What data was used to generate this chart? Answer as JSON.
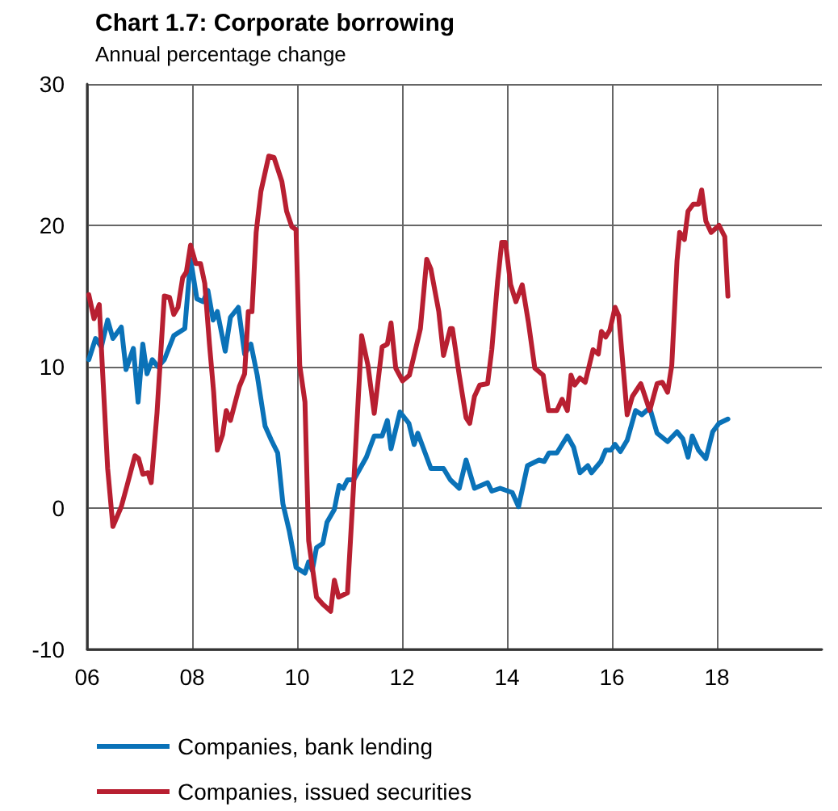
{
  "chart_data": {
    "type": "line",
    "title": "Chart 1.7: Corporate borrowing",
    "subtitle": "Annual percentage change",
    "xlim": [
      2006,
      2020
    ],
    "xticks": [
      {
        "value": 2006,
        "label": "06"
      },
      {
        "value": 2008,
        "label": "08"
      },
      {
        "value": 2010,
        "label": "10"
      },
      {
        "value": 2012,
        "label": "12"
      },
      {
        "value": 2014,
        "label": "14"
      },
      {
        "value": 2016,
        "label": "16"
      },
      {
        "value": 2018,
        "label": "18"
      }
    ],
    "ylim": [
      -10,
      30
    ],
    "yticks": [
      -10,
      0,
      10,
      20,
      30
    ],
    "grid": true,
    "legend": "bottom",
    "marker": "none",
    "line_style": "solid",
    "series": [
      {
        "name": "Companies, bank lending",
        "color": "#0a72b8",
        "x": [
          2006.03,
          2006.16,
          2006.27,
          2006.39,
          2006.49,
          2006.65,
          2006.74,
          2006.88,
          2006.97,
          2007.06,
          2007.14,
          2007.24,
          2007.35,
          2007.47,
          2007.65,
          2007.86,
          2007.97,
          2008.09,
          2008.21,
          2008.3,
          2008.4,
          2008.48,
          2008.63,
          2008.73,
          2008.88,
          2009.0,
          2009.12,
          2009.24,
          2009.39,
          2009.51,
          2009.63,
          2009.73,
          2009.85,
          2009.98,
          2010.15,
          2010.22,
          2010.29,
          2010.37,
          2010.49,
          2010.57,
          2010.71,
          2010.8,
          2010.88,
          2010.96,
          2011.08,
          2011.32,
          2011.47,
          2011.62,
          2011.72,
          2011.79,
          2011.96,
          2012.13,
          2012.23,
          2012.3,
          2012.55,
          2012.79,
          2012.92,
          2013.09,
          2013.22,
          2013.38,
          2013.63,
          2013.71,
          2013.87,
          2014.1,
          2014.22,
          2014.39,
          2014.61,
          2014.71,
          2014.8,
          2014.95,
          2015.15,
          2015.27,
          2015.39,
          2015.54,
          2015.61,
          2015.79,
          2015.88,
          2015.98,
          2016.06,
          2016.16,
          2016.29,
          2016.45,
          2016.57,
          2016.72,
          2016.86,
          2017.06,
          2017.24,
          2017.35,
          2017.45,
          2017.53,
          2017.65,
          2017.79,
          2017.92,
          2018.04,
          2018.21
        ],
        "values": [
          10.5,
          12.0,
          11.4,
          13.3,
          12.0,
          12.8,
          9.8,
          11.3,
          7.5,
          11.6,
          9.5,
          10.5,
          10.0,
          10.5,
          12.2,
          12.7,
          17.6,
          14.8,
          14.6,
          15.4,
          13.3,
          13.9,
          11.1,
          13.5,
          14.2,
          10.9,
          11.6,
          9.4,
          5.8,
          4.8,
          3.9,
          0.3,
          -1.6,
          -4.2,
          -4.6,
          -3.8,
          -4.4,
          -2.8,
          -2.5,
          -1.0,
          -0.1,
          1.6,
          1.4,
          2.0,
          2.0,
          3.6,
          5.1,
          5.1,
          6.2,
          4.2,
          6.8,
          6.0,
          4.5,
          5.3,
          2.8,
          2.8,
          2.0,
          1.4,
          3.4,
          1.4,
          1.8,
          1.2,
          1.4,
          1.1,
          0.1,
          3.0,
          3.4,
          3.3,
          3.9,
          3.9,
          5.1,
          4.3,
          2.5,
          3.0,
          2.5,
          3.3,
          4.1,
          4.1,
          4.5,
          4.0,
          4.8,
          6.9,
          6.6,
          7.1,
          5.3,
          4.7,
          5.4,
          4.9,
          3.6,
          5.1,
          4.1,
          3.5,
          5.4,
          6.0,
          6.3
        ]
      },
      {
        "name": "Companies, issued securities",
        "color": "#b81f31",
        "x": [
          2006.03,
          2006.13,
          2006.23,
          2006.29,
          2006.39,
          2006.49,
          2006.65,
          2006.76,
          2006.91,
          2006.98,
          2007.06,
          2007.16,
          2007.22,
          2007.33,
          2007.47,
          2007.57,
          2007.65,
          2007.73,
          2007.82,
          2007.89,
          2007.97,
          2008.07,
          2008.16,
          2008.24,
          2008.33,
          2008.41,
          2008.48,
          2008.58,
          2008.65,
          2008.73,
          2008.9,
          2009.0,
          2009.07,
          2009.14,
          2009.22,
          2009.31,
          2009.46,
          2009.56,
          2009.71,
          2009.8,
          2009.9,
          2009.98,
          2010.05,
          2010.15,
          2010.22,
          2010.37,
          2010.49,
          2010.64,
          2010.71,
          2010.79,
          2010.96,
          2011.08,
          2011.23,
          2011.35,
          2011.47,
          2011.62,
          2011.72,
          2011.79,
          2011.88,
          2012.01,
          2012.14,
          2012.35,
          2012.47,
          2012.55,
          2012.7,
          2012.79,
          2012.92,
          2012.96,
          2013.09,
          2013.22,
          2013.29,
          2013.38,
          2013.48,
          2013.63,
          2013.71,
          2013.82,
          2013.9,
          2013.97,
          2014.07,
          2014.17,
          2014.29,
          2014.41,
          2014.53,
          2014.69,
          2014.79,
          2014.95,
          2015.05,
          2015.15,
          2015.22,
          2015.29,
          2015.39,
          2015.49,
          2015.64,
          2015.74,
          2015.8,
          2015.88,
          2015.96,
          2016.06,
          2016.13,
          2016.29,
          2016.39,
          2016.55,
          2016.72,
          2016.86,
          2016.96,
          2017.06,
          2017.14,
          2017.24,
          2017.29,
          2017.38,
          2017.45,
          2017.55,
          2017.65,
          2017.71,
          2017.79,
          2017.89,
          2018.04,
          2018.15,
          2018.21
        ],
        "values": [
          15.1,
          13.4,
          14.4,
          9.9,
          2.8,
          -1.3,
          0.1,
          1.6,
          3.7,
          3.5,
          2.4,
          2.5,
          1.8,
          6.7,
          15.0,
          14.9,
          13.7,
          14.2,
          16.3,
          16.7,
          18.6,
          17.3,
          17.3,
          15.9,
          11.6,
          8.2,
          4.1,
          5.2,
          6.9,
          6.2,
          8.6,
          9.5,
          13.9,
          13.9,
          19.5,
          22.4,
          24.9,
          24.8,
          23.1,
          21.0,
          19.9,
          19.7,
          10.1,
          7.5,
          -2.3,
          -6.3,
          -6.8,
          -7.3,
          -5.1,
          -6.3,
          -6.0,
          1.8,
          12.2,
          10.1,
          6.7,
          11.4,
          11.6,
          13.1,
          9.9,
          9.0,
          9.4,
          12.7,
          17.6,
          16.9,
          13.9,
          10.8,
          12.7,
          12.7,
          9.4,
          6.4,
          6.0,
          7.9,
          8.7,
          8.8,
          11.2,
          16.0,
          18.8,
          18.8,
          15.8,
          14.6,
          15.8,
          13.1,
          9.9,
          9.4,
          6.9,
          6.9,
          7.7,
          6.9,
          9.4,
          8.7,
          9.2,
          8.9,
          11.2,
          10.9,
          12.5,
          12.1,
          12.6,
          14.2,
          13.6,
          6.6,
          7.9,
          8.8,
          6.9,
          8.8,
          8.9,
          8.2,
          10.1,
          17.5,
          19.5,
          19.0,
          21.0,
          21.5,
          21.5,
          22.5,
          20.3,
          19.5,
          20.0,
          19.2,
          15.0
        ]
      }
    ]
  }
}
